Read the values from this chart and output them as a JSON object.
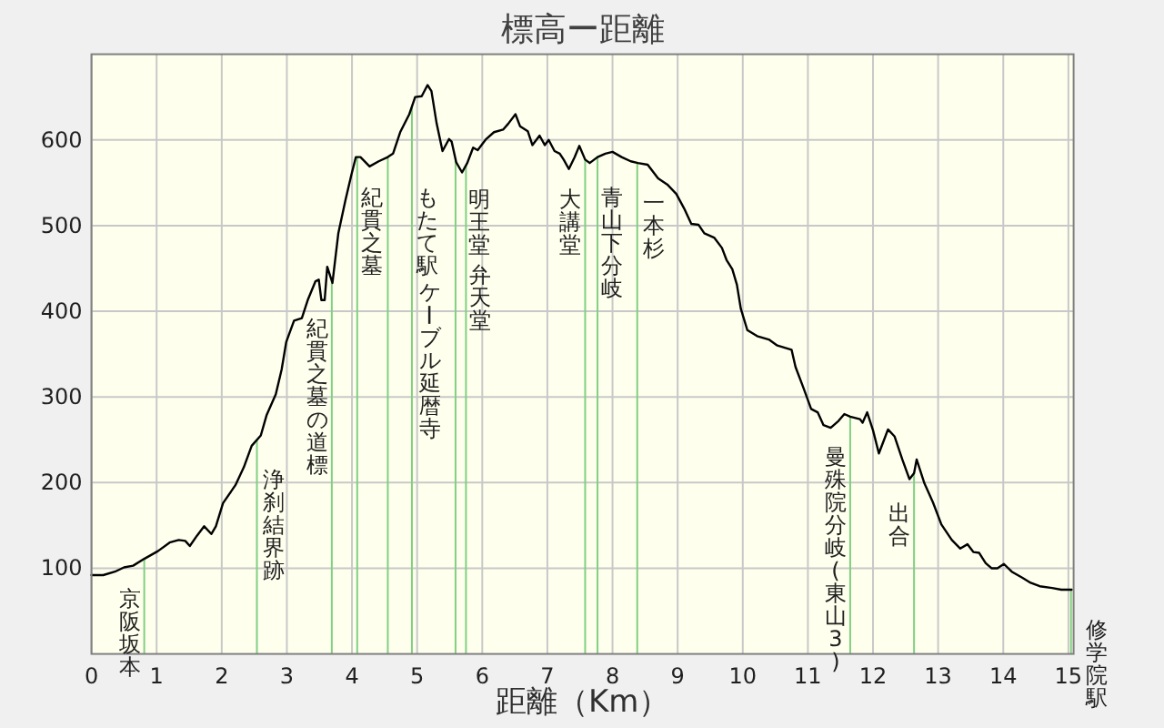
{
  "chart_data": {
    "type": "line",
    "title": "標高ー距離",
    "xlabel": "距離（Km）",
    "x": [
      0,
      0.18,
      0.36,
      0.5,
      0.64,
      0.81,
      1.02,
      1.2,
      1.34,
      1.44,
      1.51,
      1.62,
      1.73,
      1.84,
      1.91,
      2.02,
      2.21,
      2.34,
      2.46,
      2.6,
      2.69,
      2.83,
      2.92,
      2.99,
      3.11,
      3.23,
      3.32,
      3.44,
      3.49,
      3.53,
      3.58,
      3.62,
      3.7,
      3.79,
      3.9,
      3.99,
      4.06,
      4.13,
      4.27,
      4.41,
      4.55,
      4.63,
      4.74,
      4.88,
      4.97,
      5.07,
      5.16,
      5.22,
      5.3,
      5.39,
      5.49,
      5.53,
      5.6,
      5.69,
      5.77,
      5.86,
      5.93,
      6.06,
      6.18,
      6.32,
      6.4,
      6.51,
      6.58,
      6.7,
      6.77,
      6.88,
      6.96,
      7.02,
      7.11,
      7.19,
      7.25,
      7.33,
      7.42,
      7.49,
      7.58,
      7.65,
      7.77,
      7.89,
      8.0,
      8.14,
      8.28,
      8.39,
      8.54,
      8.7,
      8.84,
      8.98,
      9.1,
      9.21,
      9.32,
      9.41,
      9.56,
      9.68,
      9.75,
      9.84,
      9.91,
      9.97,
      10.07,
      10.22,
      10.4,
      10.53,
      10.75,
      10.81,
      10.93,
      11.05,
      11.15,
      11.24,
      11.35,
      11.47,
      11.56,
      11.65,
      11.8,
      11.84,
      11.91,
      12.0,
      12.09,
      12.17,
      12.23,
      12.33,
      12.45,
      12.56,
      12.63,
      12.67,
      12.79,
      12.92,
      13.05,
      13.21,
      13.34,
      13.45,
      13.54,
      13.63,
      13.73,
      13.82,
      13.91,
      14.01,
      14.13,
      14.29,
      14.42,
      14.56,
      14.75,
      14.89,
      15.05
    ],
    "series": [
      {
        "color": "#000000",
        "values": [
          92,
          92,
          96,
          101,
          103,
          111,
          120,
          130,
          133,
          132,
          126,
          138,
          149,
          140,
          149,
          176,
          197,
          218,
          243,
          255,
          279,
          303,
          332,
          364,
          389,
          392,
          413,
          435,
          437,
          413,
          413,
          452,
          433,
          491,
          530,
          559,
          580,
          580,
          569,
          575,
          580,
          584,
          609,
          630,
          650,
          651,
          664,
          657,
          619,
          587,
          601,
          598,
          574,
          562,
          573,
          591,
          588,
          601,
          609,
          612,
          619,
          630,
          616,
          610,
          594,
          605,
          594,
          600,
          587,
          584,
          577,
          566,
          580,
          593,
          577,
          573,
          580,
          584,
          586,
          580,
          575,
          573,
          571,
          555,
          548,
          537,
          520,
          502,
          501,
          491,
          486,
          474,
          460,
          449,
          431,
          403,
          378,
          371,
          367,
          360,
          355,
          335,
          311,
          286,
          282,
          267,
          264,
          272,
          280,
          277,
          274,
          270,
          282,
          261,
          234,
          250,
          262,
          254,
          227,
          204,
          211,
          227,
          199,
          177,
          151,
          133,
          123,
          128,
          119,
          118,
          106,
          100,
          100,
          105,
          96,
          89,
          83,
          79,
          77,
          75,
          75
        ]
      }
    ],
    "xlim": [
      0,
      15.08
    ],
    "xticks": [
      0,
      1,
      2,
      3,
      4,
      5,
      6,
      7,
      8,
      9,
      10,
      11,
      12,
      13,
      14,
      15
    ],
    "ylim": [
      0,
      700
    ],
    "yticks": [
      100,
      200,
      300,
      400,
      500,
      600
    ],
    "grid": true,
    "ref_lines": [
      {
        "axis": "x",
        "value": 0.81,
        "label": "京阪坂本",
        "color": "#80d080"
      },
      {
        "axis": "x",
        "value": 2.54,
        "label": "浄刹結界跡",
        "color": "#80d080"
      },
      {
        "axis": "x",
        "value": 3.69,
        "label": "紀貫之墓の道標",
        "color": "#80d080"
      },
      {
        "axis": "x",
        "value": 4.08,
        "label": "紀貫之墓",
        "color": "#80d080"
      },
      {
        "axis": "x",
        "value": 4.55,
        "label": "もたて駅",
        "color": "#80d080"
      },
      {
        "axis": "x",
        "value": 4.92,
        "label": "ケーブル延暦寺",
        "color": "#80d080"
      },
      {
        "axis": "x",
        "value": 5.59,
        "label": "明王堂",
        "color": "#80d080"
      },
      {
        "axis": "x",
        "value": 5.75,
        "label": "弁天堂",
        "color": "#80d080"
      },
      {
        "axis": "x",
        "value": 7.58,
        "label": "大講堂",
        "color": "#80d080"
      },
      {
        "axis": "x",
        "value": 7.77,
        "label": "青山下分岐",
        "color": "#80d080"
      },
      {
        "axis": "x",
        "value": 8.38,
        "label": "一本杉",
        "color": "#80d080"
      },
      {
        "axis": "x",
        "value": 11.65,
        "label": "曼殊院分岐(東山3)",
        "color": "#80d080"
      },
      {
        "axis": "x",
        "value": 12.63,
        "label": "出合",
        "color": "#80d080"
      },
      {
        "axis": "x",
        "value": 15.04,
        "label": "修学院駅",
        "color": "#80d080"
      }
    ]
  }
}
